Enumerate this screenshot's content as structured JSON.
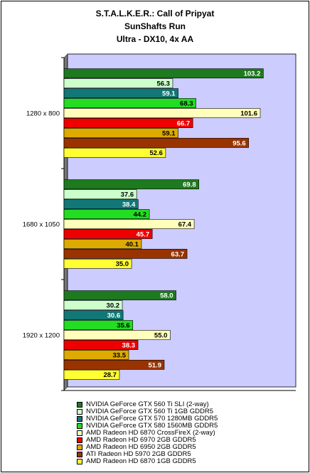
{
  "chart_data": {
    "type": "bar",
    "orientation": "horizontal",
    "title": [
      "S.T.A.L.K.E.R.: Call of Pripyat",
      "SunShafts Run",
      "Ultra - DX10, 4x AA"
    ],
    "categories": [
      "1280 x 800",
      "1680 x 1050",
      "1920 x 1200"
    ],
    "xlim": [
      0,
      120
    ],
    "grid": false,
    "legend_position": "bottom",
    "plot_background": "#ccccff",
    "series": [
      {
        "name": "NVIDIA GeForce GTX 560 Ti SLI (2-way)",
        "color": "#1e7a1e",
        "label_color": "#ffffff",
        "values": [
          103.2,
          69.8,
          58.0
        ]
      },
      {
        "name": "NVIDIA GeForce GTX 560 Ti 1GB GDDR5",
        "color": "#ccffcc",
        "label_color": "#000000",
        "values": [
          56.3,
          37.6,
          30.2
        ]
      },
      {
        "name": "NVIDIA GeForce GTX 570 1280MB GDDR5",
        "color": "#117777",
        "label_color": "#ffffff",
        "values": [
          59.1,
          38.4,
          30.6
        ]
      },
      {
        "name": "NVIDIA GeForce GTX 580 1560MB GDDR5",
        "color": "#22dd22",
        "label_color": "#000000",
        "values": [
          68.3,
          44.2,
          35.6
        ]
      },
      {
        "name": "AMD Radeon HD 6870 CrossFireX (2-way)",
        "color": "#ffffbb",
        "label_color": "#000000",
        "values": [
          101.6,
          67.4,
          55.0
        ]
      },
      {
        "name": "AMD Radeon HD 6970 2GB GDDR5",
        "color": "#ee0000",
        "label_color": "#ffffff",
        "values": [
          66.7,
          45.7,
          38.3
        ]
      },
      {
        "name": "AMD Radeon HD 6950 2GB GDDR5",
        "color": "#ddaa00",
        "label_color": "#000000",
        "values": [
          59.1,
          40.1,
          33.5
        ]
      },
      {
        "name": "ATI Radeon HD 5970 2GB GDDR5",
        "color": "#993300",
        "label_color": "#ffffff",
        "values": [
          95.6,
          63.7,
          51.9
        ]
      },
      {
        "name": "AMD Radeon HD 6870 1GB GDDR5",
        "color": "#ffff33",
        "label_color": "#000000",
        "values": [
          52.6,
          35.0,
          28.7
        ]
      }
    ]
  }
}
